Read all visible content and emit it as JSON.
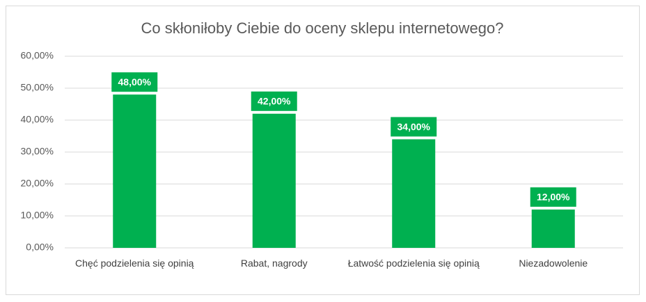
{
  "chart_data": {
    "type": "bar",
    "title": "Co skłoniłoby Ciebie do oceny sklepu internetowego?",
    "categories": [
      "Chęć podzielenia się opinią",
      "Rabat, nagrody",
      "Łatwość podzielenia się opinią",
      "Niezadowolenie"
    ],
    "values": [
      48,
      42,
      34,
      12
    ],
    "value_labels": [
      "48,00%",
      "42,00%",
      "34,00%",
      "12,00%"
    ],
    "color": "#00b050",
    "ylim": [
      0,
      60
    ],
    "yticks": [
      {
        "value": 0,
        "label": "0,00%"
      },
      {
        "value": 10,
        "label": "10,00%"
      },
      {
        "value": 20,
        "label": "20,00%"
      },
      {
        "value": 30,
        "label": "30,00%"
      },
      {
        "value": 40,
        "label": "40,00%"
      },
      {
        "value": 50,
        "label": "50,00%"
      },
      {
        "value": 60,
        "label": "60,00%"
      }
    ],
    "grid": true
  }
}
